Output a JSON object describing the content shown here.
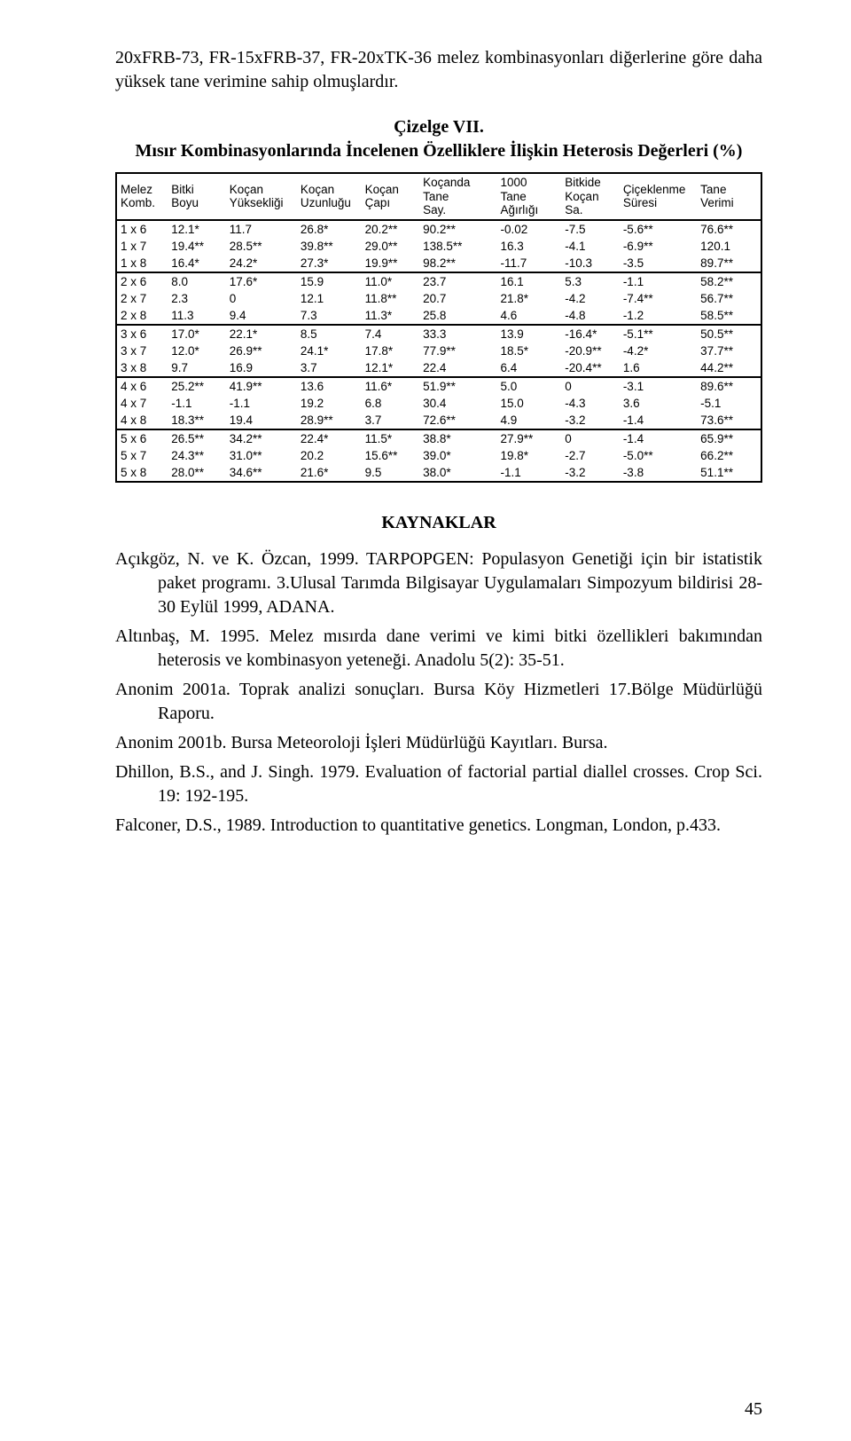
{
  "intro": "20xFRB-73, FR-15xFRB-37, FR-20xTK-36 melez kombinasyonları diğerlerine göre daha yüksek tane verimine sahip olmuşlardır.",
  "table": {
    "type": "table",
    "title_line1": "Çizelge VII.",
    "title_line2": "Mısır Kombinasyonlarında İncelenen Özelliklere İlişkin Heterosis Değerleri (%)",
    "background_color": "#ffffff",
    "font_family": "Arial",
    "header_fontsize": 13.5,
    "body_fontsize": 13.5,
    "frame_color": "#000000",
    "frame_width": 2.5,
    "columns": [
      "Melez Komb.",
      "Bitki Boyu",
      "Koçan Yüksekliği",
      "Koçan Uzunluğu",
      "Koçan Çapı",
      "Koçanda Tane Say.",
      "1000 Tane Ağırlığı",
      "Bitkide Koçan Sa.",
      "Çiçeklenme Süresi",
      "Tane Verimi"
    ],
    "col_widths_pct": [
      8,
      9,
      11,
      10,
      9,
      12,
      10,
      9,
      12,
      10
    ],
    "groups": [
      {
        "rows": [
          [
            "1 x 6",
            "12.1*",
            "11.7",
            "26.8*",
            "20.2**",
            "90.2**",
            "-0.02",
            "-7.5",
            "-5.6**",
            "76.6**"
          ],
          [
            "1 x 7",
            "19.4**",
            "28.5**",
            "39.8**",
            "29.0**",
            "138.5**",
            "16.3",
            "-4.1",
            "-6.9**",
            "120.1"
          ],
          [
            "1 x 8",
            "16.4*",
            "24.2*",
            "27.3*",
            "19.9**",
            "98.2**",
            "-11.7",
            "-10.3",
            "-3.5",
            "89.7**"
          ]
        ]
      },
      {
        "rows": [
          [
            "2 x 6",
            "8.0",
            "17.6*",
            "15.9",
            "11.0*",
            "23.7",
            "16.1",
            "5.3",
            "-1.1",
            "58.2**"
          ],
          [
            "2 x 7",
            "2.3",
            "0",
            "12.1",
            "11.8**",
            "20.7",
            "21.8*",
            "-4.2",
            "-7.4**",
            "56.7**"
          ],
          [
            "2 x 8",
            "11.3",
            "9.4",
            "7.3",
            "11.3*",
            "25.8",
            "4.6",
            "-4.8",
            "-1.2",
            "58.5**"
          ]
        ]
      },
      {
        "rows": [
          [
            "3 x 6",
            "17.0*",
            "22.1*",
            "8.5",
            "7.4",
            "33.3",
            "13.9",
            "-16.4*",
            "-5.1**",
            "50.5**"
          ],
          [
            "3 x 7",
            "12.0*",
            "26.9**",
            "24.1*",
            "17.8*",
            "77.9**",
            "18.5*",
            "-20.9**",
            "-4.2*",
            "37.7**"
          ],
          [
            "3 x 8",
            "9.7",
            "16.9",
            "3.7",
            "12.1*",
            "22.4",
            "6.4",
            "-20.4**",
            "1.6",
            "44.2**"
          ]
        ]
      },
      {
        "rows": [
          [
            "4 x 6",
            "25.2**",
            "41.9**",
            "13.6",
            "11.6*",
            "51.9**",
            "5.0",
            "0",
            "-3.1",
            "89.6**"
          ],
          [
            "4 x 7",
            "-1.1",
            "-1.1",
            "19.2",
            "6.8",
            "30.4",
            "15.0",
            "-4.3",
            "3.6",
            "-5.1"
          ],
          [
            "4 x 8",
            "18.3**",
            "19.4",
            "28.9**",
            "3.7",
            "72.6**",
            "4.9",
            "-3.2",
            "-1.4",
            "73.6**"
          ]
        ]
      },
      {
        "rows": [
          [
            "5 x 6",
            "26.5**",
            "34.2**",
            "22.4*",
            "11.5*",
            "38.8*",
            "27.9**",
            "0",
            "-1.4",
            "65.9**"
          ],
          [
            "5 x 7",
            "24.3**",
            "31.0**",
            "20.2",
            "15.6**",
            "39.0*",
            "19.8*",
            "-2.7",
            "-5.0**",
            "66.2**"
          ],
          [
            "5 x 8",
            "28.0**",
            "34.6**",
            "21.6*",
            "9.5",
            "38.0*",
            "-1.1",
            "-3.2",
            "-3.8",
            "51.1**"
          ]
        ]
      }
    ]
  },
  "references": {
    "title": "KAYNAKLAR",
    "items": [
      "Açıkgöz, N. ve K. Özcan, 1999. TARPOPGEN: Populasyon Genetiği için bir istatistik paket programı. 3.Ulusal Tarımda Bilgisayar Uygulamaları Simpozyum bildirisi 28-30 Eylül 1999, ADANA.",
      "Altınbaş, M. 1995. Melez mısırda dane verimi ve kimi bitki özellikleri bakımından heterosis ve kombinasyon yeteneği. Anadolu 5(2): 35-51.",
      "Anonim 2001a. Toprak analizi sonuçları. Bursa Köy Hizmetleri 17.Bölge Müdürlüğü Raporu.",
      "Anonim 2001b. Bursa Meteoroloji İşleri Müdürlüğü Kayıtları. Bursa.",
      "Dhillon, B.S., and J. Singh. 1979. Evaluation of factorial partial diallel crosses. Crop Sci. 19: 192-195.",
      "Falconer, D.S., 1989. Introduction to quantitative genetics. Longman, London, p.433."
    ]
  },
  "page_number": "45"
}
